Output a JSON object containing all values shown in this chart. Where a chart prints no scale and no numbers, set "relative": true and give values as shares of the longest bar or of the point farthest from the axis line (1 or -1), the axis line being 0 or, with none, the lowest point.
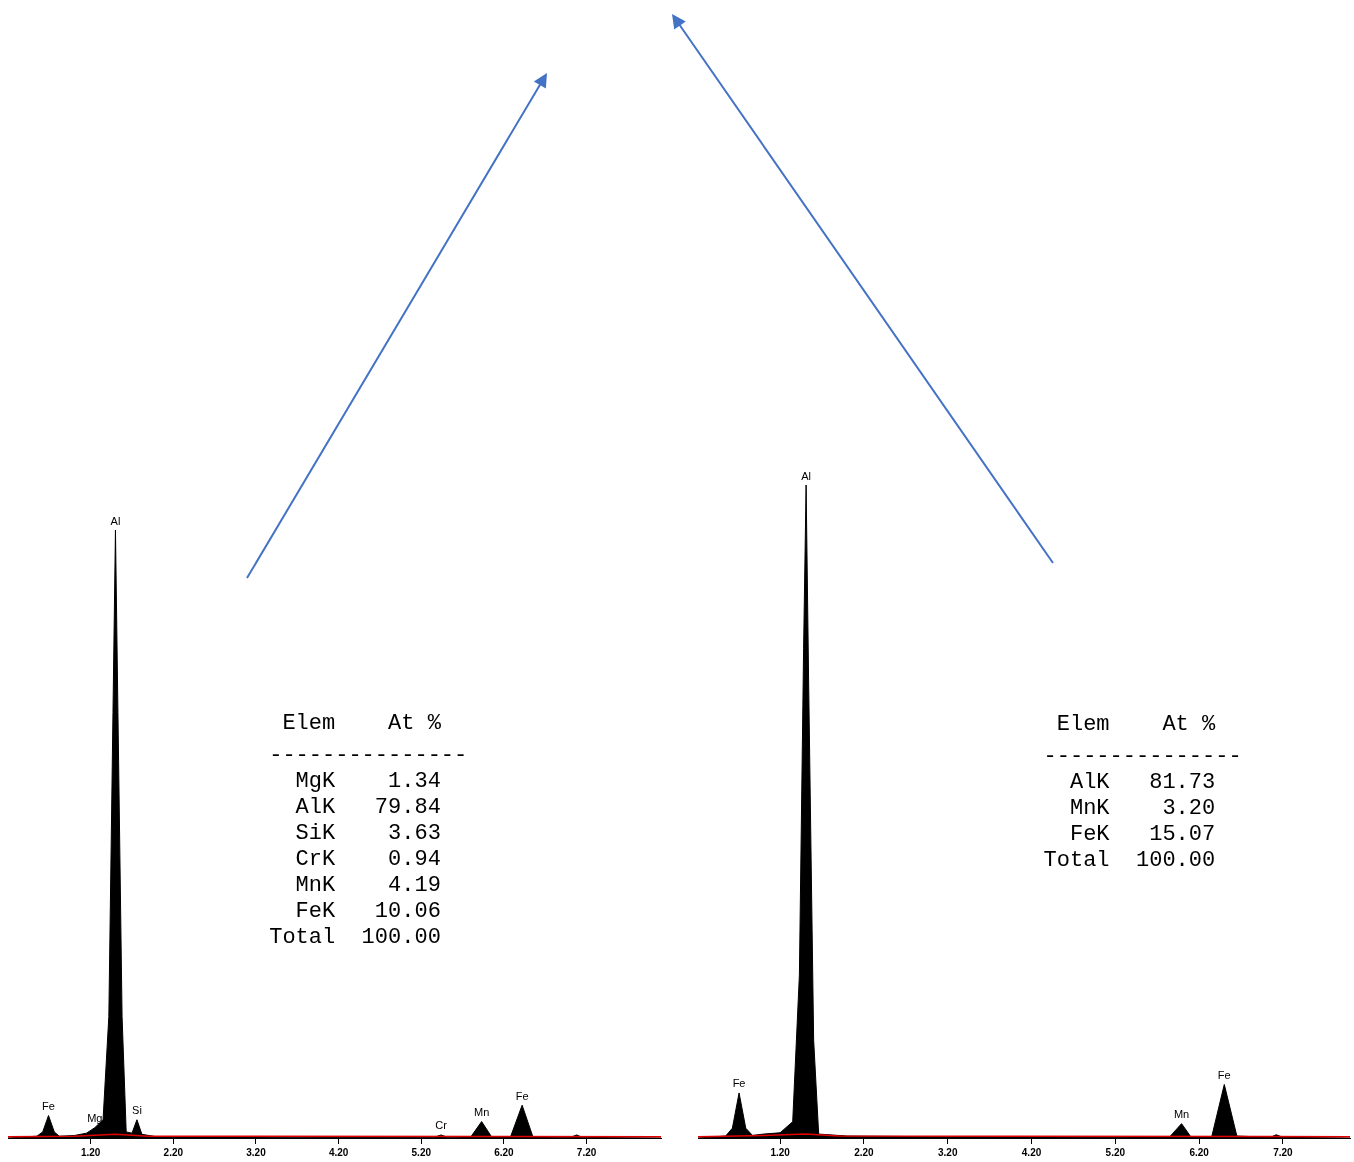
{
  "chart_data": [
    {
      "type": "area",
      "relative": true,
      "xlim": [
        0.2,
        8.1
      ],
      "xticks": [
        {
          "value": 1.2,
          "label": "1.20"
        },
        {
          "value": 2.2,
          "label": "2.20"
        },
        {
          "value": 3.2,
          "label": "3.20"
        },
        {
          "value": 4.2,
          "label": "4.20"
        },
        {
          "value": 5.2,
          "label": "5.20"
        },
        {
          "value": 6.2,
          "label": "6.20"
        },
        {
          "value": 7.2,
          "label": "7.20"
        }
      ],
      "legend": false,
      "grid": false,
      "series": [
        {
          "type": "area",
          "color": "#000000",
          "x": [
            0.2,
            0.55,
            0.62,
            0.69,
            0.76,
            0.82,
            1.0,
            1.15,
            1.25,
            1.35,
            1.42,
            1.47,
            1.5,
            1.53,
            1.58,
            1.63,
            1.7,
            1.76,
            1.82,
            2.0,
            3.0,
            4.0,
            5.35,
            5.44,
            5.52,
            5.8,
            5.93,
            6.05,
            6.28,
            6.42,
            6.55,
            7.0,
            7.08,
            7.15,
            8.1
          ],
          "values": [
            0,
            0.003,
            0.01,
            0.037,
            0.01,
            0.003,
            0.004,
            0.008,
            0.017,
            0.03,
            0.2,
            0.7,
            1,
            0.7,
            0.2,
            0.01,
            0.008,
            0.03,
            0.006,
            0.002,
            0.002,
            0.001,
            0.001,
            0.005,
            0.001,
            0.002,
            0.027,
            0.002,
            0.002,
            0.054,
            0.002,
            0.001,
            0.005,
            0.001,
            0
          ]
        },
        {
          "type": "line",
          "color": "#e00000",
          "x": [
            0.2,
            1.0,
            1.5,
            1.9,
            8.1
          ],
          "values": [
            0.002,
            0.003,
            0.006,
            0.003,
            0.002
          ]
        }
      ],
      "annotations": [
        {
          "text": "Fe",
          "x": 0.69,
          "y": 0.037
        },
        {
          "text": "Mg",
          "x": 1.25,
          "y": 0.017
        },
        {
          "text": "Al",
          "x": 1.5,
          "y": 1
        },
        {
          "text": "Si",
          "x": 1.76,
          "y": 0.03
        },
        {
          "text": "Cr",
          "x": 5.44,
          "y": 0.005
        },
        {
          "text": "Mn",
          "x": 5.93,
          "y": 0.027
        },
        {
          "text": "Fe",
          "x": 6.42,
          "y": 0.054
        },
        " Elem    At %",
        "---------------",
        "  MgK    1.34",
        "  AlK   79.84",
        "  SiK    3.63",
        "  CrK    0.94",
        "  MnK    4.19",
        "  FeK   10.06",
        "Total  100.00"
      ]
    },
    {
      "type": "area",
      "relative": true,
      "xlim": [
        0.22,
        8.0
      ],
      "xticks": [
        {
          "value": 1.2,
          "label": "1.20"
        },
        {
          "value": 2.2,
          "label": "2.20"
        },
        {
          "value": 3.2,
          "label": "3.20"
        },
        {
          "value": 4.2,
          "label": "4.20"
        },
        {
          "value": 5.2,
          "label": "5.20"
        },
        {
          "value": 6.2,
          "label": "6.20"
        },
        {
          "value": 7.2,
          "label": "7.20"
        }
      ],
      "legend": false,
      "grid": false,
      "series": [
        {
          "type": "area",
          "color": "#000000",
          "x": [
            0.22,
            0.55,
            0.63,
            0.71,
            0.79,
            0.87,
            1.0,
            1.2,
            1.35,
            1.43,
            1.48,
            1.51,
            1.54,
            1.6,
            1.66,
            2.0,
            3.0,
            4.0,
            5.0,
            5.85,
            5.99,
            6.1,
            6.35,
            6.5,
            6.65,
            7.05,
            7.12,
            7.2,
            8.0
          ],
          "values": [
            0,
            0.003,
            0.015,
            0.069,
            0.015,
            0.004,
            0.006,
            0.008,
            0.025,
            0.25,
            0.75,
            1,
            0.7,
            0.15,
            0.006,
            0.003,
            0.002,
            0.002,
            0.001,
            0.002,
            0.022,
            0.002,
            0.002,
            0.082,
            0.003,
            0.001,
            0.005,
            0.001,
            0
          ]
        },
        {
          "type": "line",
          "color": "#e00000",
          "x": [
            0.22,
            1.0,
            1.5,
            1.9,
            8.0
          ],
          "values": [
            0.002,
            0.004,
            0.006,
            0.003,
            0.002
          ]
        }
      ],
      "annotations": [
        {
          "text": "Fe",
          "x": 0.71,
          "y": 0.069
        },
        {
          "text": "Al",
          "x": 1.51,
          "y": 1
        },
        {
          "text": "Mn",
          "x": 5.99,
          "y": 0.022
        },
        {
          "text": "Fe",
          "x": 6.5,
          "y": 0.082
        },
        " Elem    At %",
        "---------------",
        "  AlK   81.73",
        "  MnK    3.20",
        "  FeK   15.07",
        "Total  100.00"
      ]
    }
  ]
}
